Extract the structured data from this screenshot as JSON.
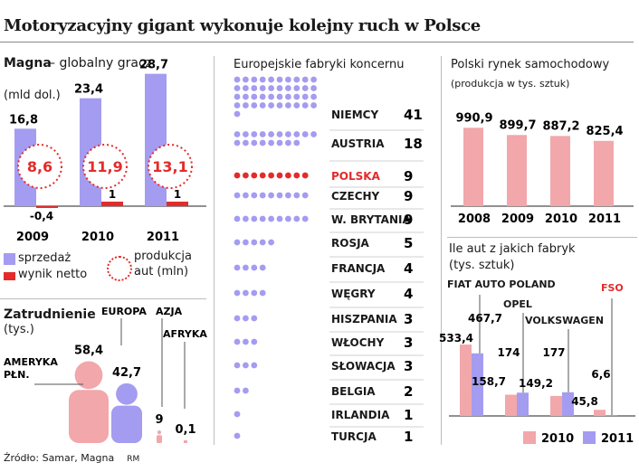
{
  "title": "Motoryzacyjny gigant wykonuje kolejny ruch w Polsce",
  "colors": {
    "blue": "#a49cf0",
    "red": "#e32b2b",
    "pink": "#f2a7ab",
    "gray": "#bdbdbd"
  },
  "magna": {
    "brand": "Magna",
    "subtitle": "– globalny gracz",
    "unit": "(mld dol.)",
    "legend": {
      "sales": "sprzedaż",
      "net": "wynik netto",
      "prod_line1": "produkcja",
      "prod_line2": "aut (mln)"
    }
  },
  "employment": {
    "title": "Zatrudnienie",
    "unit": "(tys.)"
  },
  "factories": {
    "title": "Europejskie fabryki koncernu"
  },
  "market": {
    "title": "Polski rynek samochodowy",
    "unit": "(produkcja w tys. sztuk)"
  },
  "factory_output": {
    "title_line1": "Ile aut z jakich fabryk",
    "title_line2": "(tys. sztuk)"
  },
  "source": "Źródło: Samar, Magna",
  "author": "RM",
  "chart_data": [
    {
      "type": "bar",
      "id": "magna_finance",
      "categories": [
        "2009",
        "2010",
        "2011"
      ],
      "series": [
        {
          "name": "sprzedaż",
          "values": [
            16.8,
            23.4,
            28.7
          ],
          "labels": [
            "16,8",
            "23,4",
            "28,7"
          ]
        },
        {
          "name": "wynik netto",
          "values": [
            -0.4,
            1,
            1
          ],
          "labels": [
            "-0,4",
            "1",
            "1"
          ]
        },
        {
          "name": "produkcja aut (mln)",
          "values": [
            8.6,
            11.9,
            13.1
          ],
          "labels": [
            "8,6",
            "11,9",
            "13,1"
          ]
        }
      ]
    },
    {
      "type": "bar",
      "id": "employment",
      "categories": [
        "AMERYKA PŁN.",
        "EUROPA",
        "AZJA",
        "AFRYKA"
      ],
      "values": [
        58.4,
        42.7,
        9,
        0.1
      ],
      "labels": [
        "58,4",
        "42,7",
        "9",
        "0,1"
      ],
      "category_lines": [
        [
          "AMERYKA",
          "PŁN."
        ],
        [
          "EUROPA"
        ],
        [
          "AZJA"
        ],
        [
          "AFRYKA"
        ]
      ]
    },
    {
      "type": "bar",
      "id": "european_factories",
      "categories": [
        "NIEMCY",
        "AUSTRIA",
        "POLSKA",
        "CZECHY",
        "W. BRYTANIA",
        "ROSJA",
        "FRANCJA",
        "WĘGRY",
        "HISZPANIA",
        "WŁOCHY",
        "SŁOWACJA",
        "BELGIA",
        "IRLANDIA",
        "TURCJA"
      ],
      "values": [
        41,
        18,
        9,
        9,
        9,
        5,
        4,
        4,
        3,
        3,
        3,
        2,
        1,
        1
      ],
      "highlight": "POLSKA"
    },
    {
      "type": "bar",
      "id": "polish_market",
      "categories": [
        "2008",
        "2009",
        "2010",
        "2011"
      ],
      "values": [
        990.9,
        899.7,
        887.2,
        825.4
      ],
      "labels": [
        "990,9",
        "899,7",
        "887,2",
        "825,4"
      ]
    },
    {
      "type": "bar",
      "id": "factory_output",
      "categories": [
        "FIAT AUTO POLAND",
        "OPEL",
        "VOLKSWAGEN",
        "FSO"
      ],
      "series": [
        {
          "name": "2010",
          "values": [
            533.4,
            158.7,
            149.2,
            45.8
          ],
          "labels": [
            "533,4",
            "158,7",
            "149,2",
            "45,8"
          ]
        },
        {
          "name": "2011",
          "values": [
            467.7,
            174,
            177,
            6.6
          ],
          "labels": [
            "467,7",
            "174",
            "177",
            "6,6"
          ]
        }
      ]
    }
  ]
}
